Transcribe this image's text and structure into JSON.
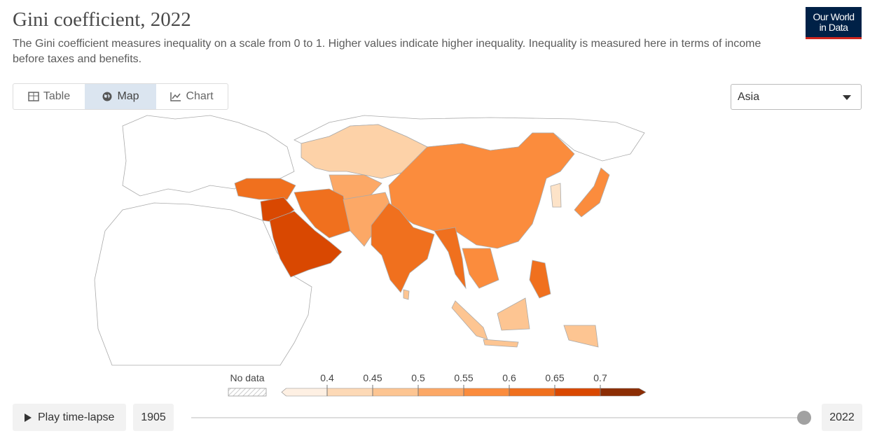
{
  "header": {
    "title": "Gini coefficient, 2022",
    "subtitle": "The Gini coefficient measures inequality on a scale from 0 to 1. Higher values indicate higher inequality. Inequality is measured here in terms of income before taxes and benefits.",
    "logo": [
      "Our World",
      "in Data"
    ]
  },
  "tabs": [
    {
      "label": "Table"
    },
    {
      "label": "Map",
      "active": true
    },
    {
      "label": "Chart"
    }
  ],
  "region_select": "Asia",
  "legend": {
    "no_data": "No data",
    "ticks": [
      0.4,
      0.45,
      0.5,
      0.55,
      0.6,
      0.65,
      0.7
    ],
    "colors": [
      "#fef0e3",
      "#fdd9b6",
      "#fdc592",
      "#fca866",
      "#fb8c3d",
      "#f0701e",
      "#d94801",
      "#8c2d04"
    ]
  },
  "timeline": {
    "play": "Play time-lapse",
    "start": 1905,
    "end": 2022
  }
}
